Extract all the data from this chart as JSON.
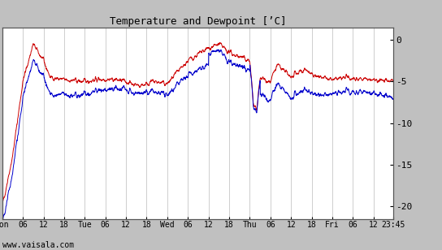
{
  "title": "Temperature and Dewpoint [’C]",
  "yticks": [
    0,
    -5,
    -10,
    -15,
    -20
  ],
  "ylim": [
    -21.5,
    1.5
  ],
  "background_color": "#ffffff",
  "outer_background": "#c0c0c0",
  "grid_color": "#bbbbbb",
  "temp_color": "#cc0000",
  "dew_color": "#0000cc",
  "line_width": 0.7,
  "watermark": "www.vaisala.com",
  "x_tick_labels": [
    "Mon",
    "06",
    "12",
    "18",
    "Tue",
    "06",
    "12",
    "18",
    "Wed",
    "06",
    "12",
    "18",
    "Thu",
    "06",
    "12",
    "18",
    "Fri",
    "06",
    "12",
    "23:45"
  ],
  "x_tick_positions": [
    0,
    6,
    12,
    18,
    24,
    30,
    36,
    42,
    48,
    54,
    60,
    66,
    72,
    78,
    84,
    90,
    96,
    102,
    108,
    113.75
  ],
  "xlim": [
    0,
    113.75
  ],
  "total_hours": 113.75,
  "figsize": [
    5.44,
    3.08
  ],
  "dpi": 100
}
